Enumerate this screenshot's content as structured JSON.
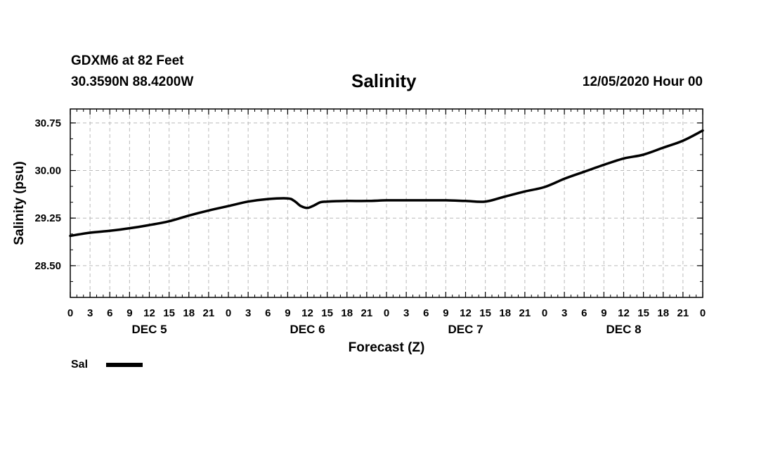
{
  "header": {
    "station": "GDXM6 at 82 Feet",
    "coordinates": "30.3590N 88.4200W",
    "title": "Salinity",
    "timestamp": "12/05/2020 Hour 00"
  },
  "legend": {
    "label": "Sal",
    "color": "#000000"
  },
  "chart_data": {
    "type": "line",
    "title": "Salinity",
    "xlabel": "Forecast (Z)",
    "ylabel": "Salinity (psu)",
    "ylim": [
      28.0,
      30.97
    ],
    "yticks": [
      "28.50",
      "29.25",
      "30.00",
      "30.75"
    ],
    "xlim": [
      0,
      96
    ],
    "xtick_labels": [
      "0",
      "3",
      "6",
      "9",
      "12",
      "15",
      "18",
      "21",
      "0",
      "3",
      "6",
      "9",
      "12",
      "15",
      "18",
      "21",
      "0",
      "3",
      "6",
      "9",
      "12",
      "15",
      "18",
      "21",
      "0",
      "3",
      "6",
      "9",
      "12",
      "15",
      "18",
      "21",
      "0"
    ],
    "day_labels": [
      "DEC 5",
      "DEC 6",
      "DEC 7",
      "DEC 8"
    ],
    "grid": true,
    "series": [
      {
        "name": "Sal",
        "color": "#000000",
        "x": [
          0,
          3,
          6,
          9,
          12,
          15,
          18,
          21,
          24,
          27,
          30,
          33,
          34,
          35,
          36,
          37,
          38,
          39,
          42,
          45,
          48,
          51,
          54,
          57,
          60,
          63,
          66,
          69,
          72,
          75,
          78,
          81,
          84,
          87,
          90,
          93,
          96
        ],
        "y": [
          28.97,
          29.02,
          29.05,
          29.09,
          29.14,
          29.2,
          29.29,
          29.37,
          29.44,
          29.51,
          29.55,
          29.56,
          29.52,
          29.44,
          29.41,
          29.45,
          29.5,
          29.51,
          29.52,
          29.52,
          29.53,
          29.53,
          29.53,
          29.53,
          29.52,
          29.51,
          29.59,
          29.67,
          29.74,
          29.87,
          29.98,
          30.09,
          30.19,
          30.25,
          30.36,
          30.47,
          30.63
        ]
      }
    ]
  }
}
